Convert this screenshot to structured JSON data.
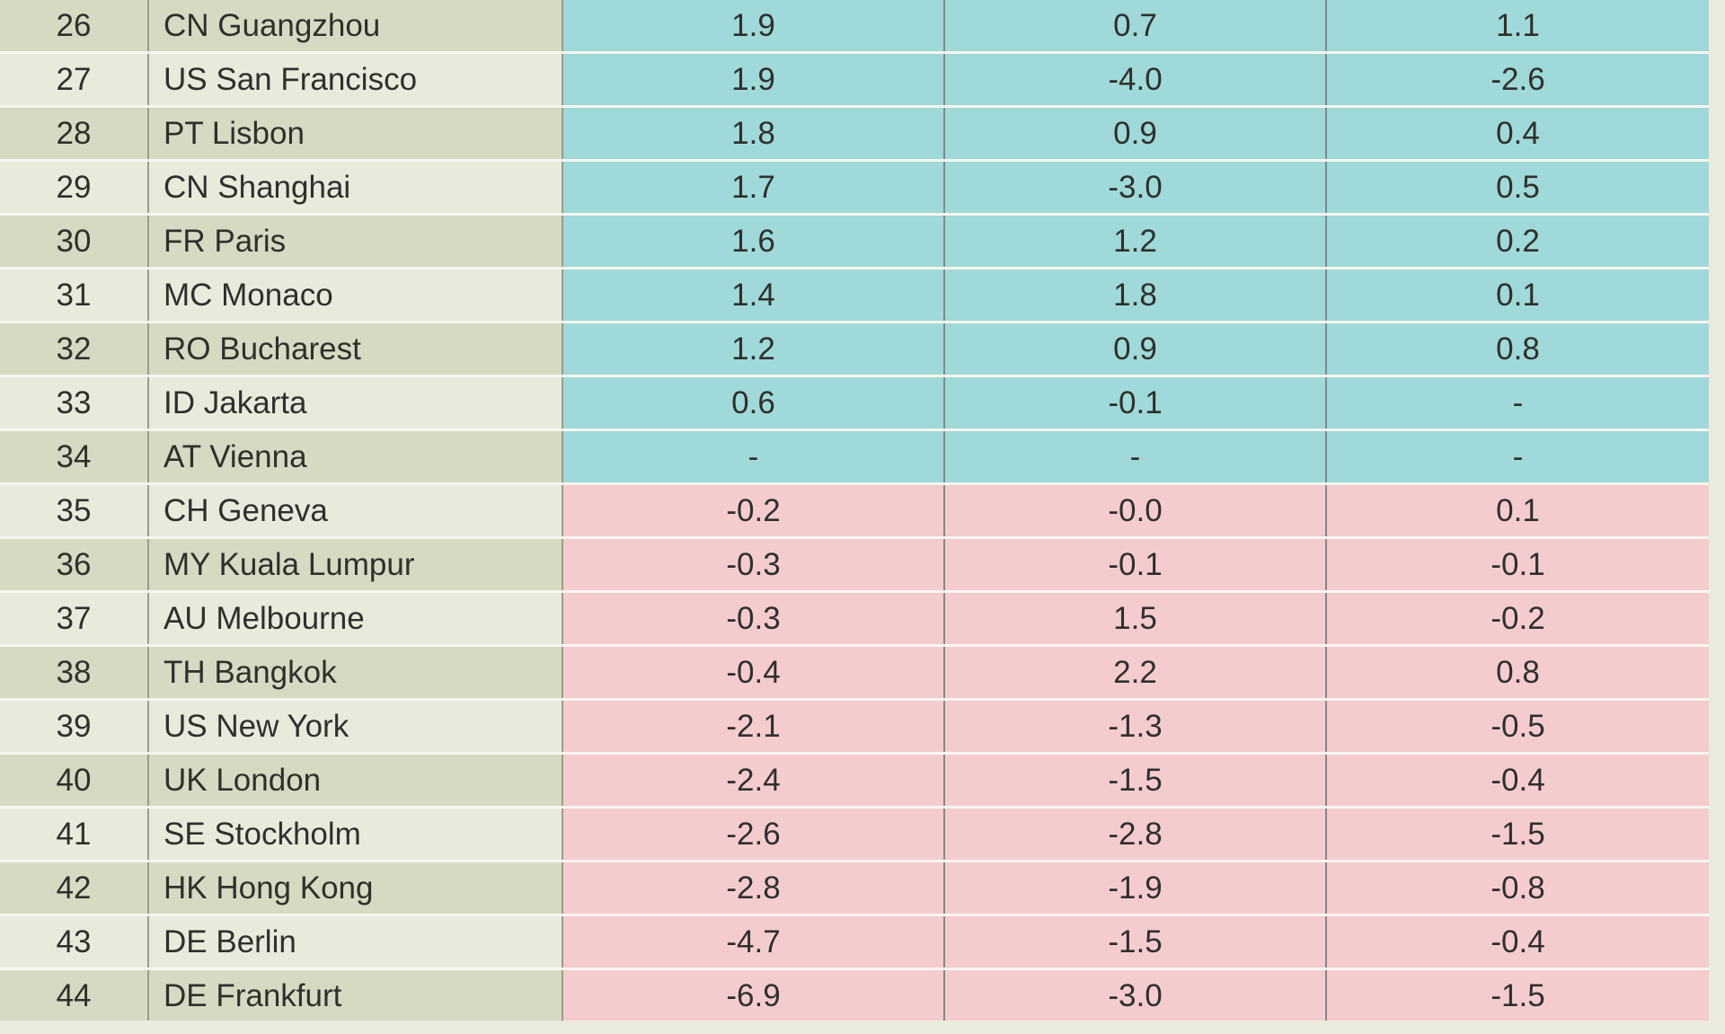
{
  "rows": [
    {
      "rank": "26",
      "city": "CN Guangzhou",
      "v1": "1.9",
      "v2": "0.7",
      "v3": "1.1",
      "sign": "pos"
    },
    {
      "rank": "27",
      "city": "US San Francisco",
      "v1": "1.9",
      "v2": "-4.0",
      "v3": "-2.6",
      "sign": "pos"
    },
    {
      "rank": "28",
      "city": "PT Lisbon",
      "v1": "1.8",
      "v2": "0.9",
      "v3": "0.4",
      "sign": "pos"
    },
    {
      "rank": "29",
      "city": "CN Shanghai",
      "v1": "1.7",
      "v2": "-3.0",
      "v3": "0.5",
      "sign": "pos"
    },
    {
      "rank": "30",
      "city": "FR Paris",
      "v1": "1.6",
      "v2": "1.2",
      "v3": "0.2",
      "sign": "pos"
    },
    {
      "rank": "31",
      "city": "MC Monaco",
      "v1": "1.4",
      "v2": "1.8",
      "v3": "0.1",
      "sign": "pos"
    },
    {
      "rank": "32",
      "city": "RO Bucharest",
      "v1": "1.2",
      "v2": "0.9",
      "v3": "0.8",
      "sign": "pos"
    },
    {
      "rank": "33",
      "city": "ID Jakarta",
      "v1": "0.6",
      "v2": "-0.1",
      "v3": "-",
      "sign": "pos"
    },
    {
      "rank": "34",
      "city": "AT Vienna",
      "v1": "-",
      "v2": "-",
      "v3": "-",
      "sign": "pos"
    },
    {
      "rank": "35",
      "city": "CH Geneva",
      "v1": "-0.2",
      "v2": "-0.0",
      "v3": "0.1",
      "sign": "neg"
    },
    {
      "rank": "36",
      "city": "MY Kuala Lumpur",
      "v1": "-0.3",
      "v2": "-0.1",
      "v3": "-0.1",
      "sign": "neg"
    },
    {
      "rank": "37",
      "city": "AU Melbourne",
      "v1": "-0.3",
      "v2": "1.5",
      "v3": "-0.2",
      "sign": "neg"
    },
    {
      "rank": "38",
      "city": "TH Bangkok",
      "v1": "-0.4",
      "v2": "2.2",
      "v3": "0.8",
      "sign": "neg"
    },
    {
      "rank": "39",
      "city": "US New York",
      "v1": "-2.1",
      "v2": "-1.3",
      "v3": "-0.5",
      "sign": "neg"
    },
    {
      "rank": "40",
      "city": "UK London",
      "v1": "-2.4",
      "v2": "-1.5",
      "v3": "-0.4",
      "sign": "neg"
    },
    {
      "rank": "41",
      "city": "SE Stockholm",
      "v1": "-2.6",
      "v2": "-2.8",
      "v3": "-1.5",
      "sign": "neg"
    },
    {
      "rank": "42",
      "city": "HK Hong Kong",
      "v1": "-2.8",
      "v2": "-1.9",
      "v3": "-0.8",
      "sign": "neg"
    },
    {
      "rank": "43",
      "city": "DE Berlin",
      "v1": "-4.7",
      "v2": "-1.5",
      "v3": "-0.4",
      "sign": "neg"
    },
    {
      "rank": "44",
      "city": "DE Frankfurt",
      "v1": "-6.9",
      "v2": "-3.0",
      "v3": "-1.5",
      "sign": "neg"
    }
  ],
  "colors": {
    "positive_fill": "#9fd9d9",
    "negative_fill": "#f5ccce",
    "label_fill_dark": "#d8d9c2",
    "label_fill_light": "#e9eadb",
    "background": "#eaebdc"
  }
}
